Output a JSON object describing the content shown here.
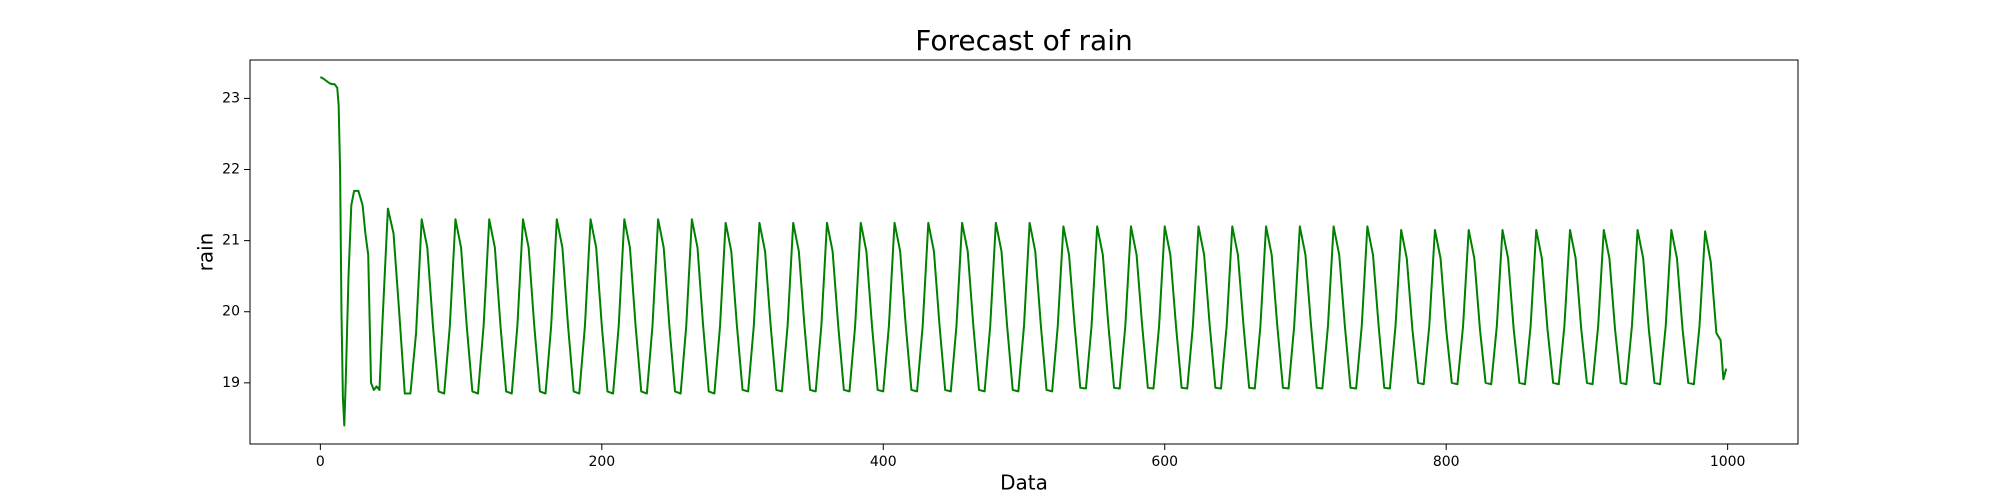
{
  "chart_data": {
    "type": "line",
    "title": "Forecast of rain",
    "xlabel": "Data",
    "ylabel": "rain",
    "color": "#008000",
    "xlim": [
      -50,
      1050
    ],
    "xticks": [
      0,
      200,
      400,
      600,
      800,
      1000
    ],
    "ylim": [
      18.14,
      23.54
    ],
    "yticks": [
      19,
      20,
      21,
      22,
      23
    ],
    "x": [
      0,
      2,
      4,
      6,
      8,
      10,
      12,
      13,
      14,
      15,
      16,
      17,
      18,
      20,
      22,
      24,
      27,
      30,
      32,
      34,
      36,
      38,
      40,
      42,
      44,
      48,
      52,
      56,
      60,
      64,
      68,
      72,
      76,
      80,
      84,
      88,
      92,
      96,
      100,
      104,
      108,
      112,
      116,
      120,
      124,
      128,
      132,
      136,
      140,
      144,
      148,
      152,
      156,
      160,
      164,
      168,
      172,
      176,
      180,
      184,
      188,
      192,
      196,
      200,
      204,
      208,
      212,
      216,
      220,
      224,
      228,
      232,
      236,
      240,
      244,
      248,
      252,
      256,
      260,
      264,
      268,
      272,
      276,
      280,
      284,
      288,
      292,
      296,
      300,
      304,
      308,
      312,
      316,
      320,
      324,
      328,
      332,
      336,
      340,
      344,
      348,
      352,
      356,
      360,
      364,
      368,
      372,
      376,
      380,
      384,
      388,
      392,
      396,
      400,
      404,
      408,
      412,
      416,
      420,
      424,
      428,
      432,
      436,
      440,
      444,
      448,
      452,
      456,
      460,
      464,
      468,
      472,
      476,
      480,
      484,
      488,
      492,
      496,
      500,
      504,
      508,
      512,
      516,
      520,
      524,
      528,
      532,
      536,
      540,
      544,
      548,
      552,
      556,
      560,
      564,
      568,
      572,
      576,
      580,
      584,
      588,
      592,
      596,
      600,
      604,
      608,
      612,
      616,
      620,
      624,
      628,
      632,
      636,
      640,
      644,
      648,
      652,
      656,
      660,
      664,
      668,
      672,
      676,
      680,
      684,
      688,
      692,
      696,
      700,
      704,
      708,
      712,
      716,
      720,
      724,
      728,
      732,
      736,
      740,
      744,
      748,
      752,
      756,
      760,
      764,
      768,
      772,
      776,
      780,
      784,
      788,
      792,
      796,
      800,
      804,
      808,
      812,
      816,
      820,
      824,
      828,
      832,
      836,
      840,
      844,
      848,
      852,
      856,
      860,
      864,
      868,
      872,
      876,
      880,
      884,
      888,
      892,
      896,
      900,
      904,
      908,
      912,
      916,
      920,
      924,
      928,
      932,
      936,
      940,
      944,
      948,
      952,
      956,
      960,
      964,
      968,
      972,
      976,
      980,
      984,
      988,
      992,
      995,
      997,
      999
    ],
    "values": [
      23.3,
      23.28,
      23.25,
      23.22,
      23.2,
      23.2,
      23.15,
      22.9,
      22.0,
      20.0,
      18.8,
      18.4,
      19.0,
      20.5,
      21.5,
      21.7,
      21.7,
      21.5,
      21.1,
      20.8,
      19.0,
      18.9,
      18.95,
      18.9,
      19.8,
      21.45,
      21.1,
      20.0,
      18.85,
      18.85,
      19.7,
      21.3,
      20.9,
      19.8,
      18.88,
      18.85,
      19.8,
      21.3,
      20.9,
      19.8,
      18.88,
      18.85,
      19.8,
      21.3,
      20.9,
      19.8,
      18.88,
      18.85,
      19.8,
      21.3,
      20.9,
      19.8,
      18.88,
      18.85,
      19.8,
      21.3,
      20.9,
      19.8,
      18.88,
      18.85,
      19.8,
      21.3,
      20.9,
      19.8,
      18.88,
      18.85,
      19.8,
      21.3,
      20.9,
      19.8,
      18.88,
      18.85,
      19.8,
      21.3,
      20.9,
      19.8,
      18.88,
      18.85,
      19.8,
      21.3,
      20.9,
      19.8,
      18.88,
      18.85,
      19.8,
      21.25,
      20.85,
      19.8,
      18.9,
      18.88,
      19.8,
      21.25,
      20.85,
      19.8,
      18.9,
      18.88,
      19.8,
      21.25,
      20.85,
      19.8,
      18.9,
      18.88,
      19.8,
      21.25,
      20.85,
      19.8,
      18.9,
      18.88,
      19.8,
      21.25,
      20.85,
      19.8,
      18.9,
      18.88,
      19.8,
      21.25,
      20.85,
      19.8,
      18.9,
      18.88,
      19.8,
      21.25,
      20.85,
      19.8,
      18.9,
      18.88,
      19.8,
      21.25,
      20.85,
      19.8,
      18.9,
      18.88,
      19.8,
      21.25,
      20.85,
      19.8,
      18.9,
      18.88,
      19.8,
      21.25,
      20.85,
      19.8,
      18.9,
      18.88,
      19.8,
      21.2,
      20.8,
      19.8,
      18.93,
      18.92,
      19.8,
      21.2,
      20.8,
      19.8,
      18.93,
      18.92,
      19.8,
      21.2,
      20.8,
      19.8,
      18.93,
      18.92,
      19.8,
      21.2,
      20.8,
      19.8,
      18.93,
      18.92,
      19.8,
      21.2,
      20.8,
      19.8,
      18.93,
      18.92,
      19.8,
      21.2,
      20.8,
      19.8,
      18.93,
      18.92,
      19.8,
      21.2,
      20.8,
      19.8,
      18.93,
      18.92,
      19.8,
      21.2,
      20.8,
      19.8,
      18.93,
      18.92,
      19.8,
      21.2,
      20.8,
      19.8,
      18.93,
      18.92,
      19.8,
      21.2,
      20.8,
      19.8,
      18.93,
      18.92,
      19.8,
      21.15,
      20.75,
      19.75,
      19.0,
      18.98,
      19.8,
      21.15,
      20.75,
      19.75,
      19.0,
      18.98,
      19.8,
      21.15,
      20.75,
      19.75,
      19.0,
      18.98,
      19.8,
      21.15,
      20.75,
      19.75,
      19.0,
      18.98,
      19.8,
      21.15,
      20.75,
      19.75,
      19.0,
      18.98,
      19.8,
      21.15,
      20.75,
      19.75,
      19.0,
      18.98,
      19.8,
      21.15,
      20.75,
      19.75,
      19.0,
      18.98,
      19.8,
      21.15,
      20.75,
      19.75,
      19.0,
      18.98,
      19.8,
      21.15,
      20.75,
      19.75,
      19.0,
      18.98,
      19.8,
      21.13,
      20.7,
      19.7,
      19.6,
      19.05,
      19.2
    ]
  }
}
